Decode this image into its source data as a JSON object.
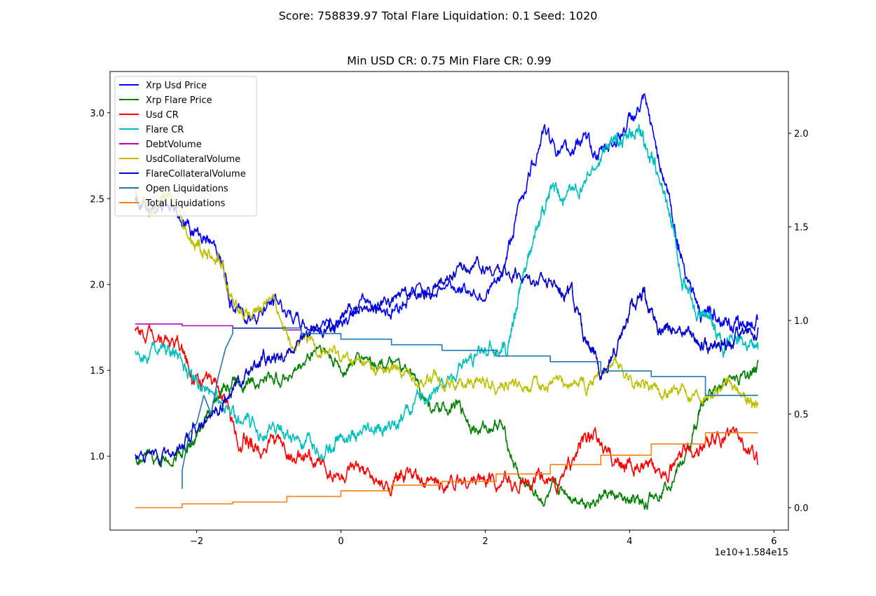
{
  "chart_data": {
    "type": "line",
    "suptitle": "Score: 758839.97 Total Flare Liquidation: 0.1 Seed: 1020",
    "title": "Min USD CR: 0.75 Min Flare CR: 0.99",
    "x_offset_label": "1e10+1.584e15",
    "xlim": [
      -3.2,
      6.2
    ],
    "ylim_left": [
      0.57,
      3.24
    ],
    "ylim_right": [
      -0.12,
      2.33
    ],
    "x_ticks": [
      -2,
      0,
      2,
      4,
      6
    ],
    "y_ticks_left": [
      1.0,
      1.5,
      2.0,
      2.5,
      3.0
    ],
    "y_ticks_right": [
      0.0,
      0.5,
      1.0,
      1.5,
      2.0
    ],
    "x_tick_labels": [
      "−2",
      "0",
      "2",
      "4",
      "6"
    ],
    "y_tick_labels_left": [
      "1.0",
      "1.5",
      "2.0",
      "2.5",
      "3.0"
    ],
    "y_tick_labels_right": [
      "0.0",
      "0.5",
      "1.0",
      "1.5",
      "2.0"
    ],
    "grid": false,
    "legend_position": "top-left",
    "series": [
      {
        "name": "Xrp Usd Price",
        "color": "#0000ff",
        "axis": "left",
        "jitter": 0.035,
        "x": [
          -2.85,
          -2.6,
          -2.3,
          -2.0,
          -1.7,
          -1.5,
          -1.2,
          -0.9,
          -0.5,
          0.0,
          0.4,
          0.7,
          1.0,
          1.5,
          1.9,
          2.2,
          2.5,
          2.8,
          3.1,
          3.3,
          3.6,
          3.9,
          4.2,
          4.5,
          4.7,
          5.0,
          5.2,
          5.5,
          5.78
        ],
        "y": [
          2.48,
          2.45,
          2.42,
          2.3,
          2.2,
          1.85,
          1.83,
          1.9,
          1.75,
          1.8,
          1.9,
          1.85,
          1.95,
          2.0,
          1.95,
          2.0,
          2.5,
          2.9,
          2.75,
          2.85,
          2.75,
          2.9,
          3.05,
          2.6,
          2.2,
          1.8,
          1.85,
          1.75,
          1.8
        ]
      },
      {
        "name": "Xrp Flare Price",
        "color": "#008000",
        "axis": "left",
        "jitter": 0.03,
        "x": [
          -2.85,
          -2.5,
          -2.2,
          -2.0,
          -1.7,
          -1.5,
          -1.2,
          -0.9,
          -0.6,
          -0.3,
          0.0,
          0.3,
          0.6,
          1.0,
          1.3,
          1.6,
          1.9,
          2.2,
          2.5,
          2.8,
          3.1,
          3.4,
          3.7,
          4.0,
          4.2,
          4.5,
          4.8,
          5.0,
          5.3,
          5.6,
          5.78
        ],
        "y": [
          1.0,
          0.97,
          1.02,
          1.1,
          1.35,
          1.45,
          1.45,
          1.45,
          1.5,
          1.65,
          1.5,
          1.58,
          1.55,
          1.45,
          1.25,
          1.3,
          1.15,
          1.2,
          0.85,
          0.75,
          0.8,
          0.75,
          0.78,
          0.72,
          0.72,
          0.85,
          1.0,
          1.3,
          1.45,
          1.45,
          1.55
        ]
      },
      {
        "name": "Usd CR",
        "color": "#ff0000",
        "axis": "left",
        "jitter": 0.035,
        "x": [
          -2.85,
          -2.5,
          -2.2,
          -2.0,
          -1.7,
          -1.4,
          -1.2,
          -0.9,
          -0.6,
          -0.3,
          0.0,
          0.3,
          0.6,
          0.9,
          1.2,
          1.5,
          1.8,
          2.1,
          2.4,
          2.7,
          3.0,
          3.3,
          3.5,
          3.8,
          4.0,
          4.3,
          4.6,
          4.9,
          5.2,
          5.5,
          5.78
        ],
        "y": [
          1.72,
          1.72,
          1.62,
          1.45,
          1.4,
          1.1,
          1.05,
          1.1,
          0.97,
          0.95,
          0.88,
          0.9,
          0.8,
          0.9,
          0.82,
          0.85,
          0.86,
          0.88,
          0.83,
          0.86,
          0.83,
          1.05,
          1.1,
          0.98,
          0.95,
          0.9,
          0.96,
          1.05,
          1.1,
          1.12,
          0.95
        ]
      },
      {
        "name": "Flare CR",
        "color": "#00bfbf",
        "axis": "left",
        "jitter": 0.035,
        "x": [
          -2.85,
          -2.5,
          -2.2,
          -2.0,
          -1.7,
          -1.4,
          -1.1,
          -0.8,
          -0.5,
          -0.2,
          0.0,
          0.3,
          0.6,
          0.9,
          1.2,
          1.5,
          1.8,
          2.1,
          2.3,
          2.5,
          2.7,
          2.9,
          3.1,
          3.4,
          3.7,
          3.9,
          4.1,
          4.3,
          4.5,
          4.7,
          4.9,
          5.1,
          5.3,
          5.5,
          5.78
        ],
        "y": [
          1.6,
          1.65,
          1.55,
          1.45,
          1.35,
          1.2,
          1.15,
          1.15,
          1.05,
          1.05,
          1.12,
          1.1,
          1.15,
          1.25,
          1.35,
          1.45,
          1.55,
          1.65,
          1.6,
          2.0,
          2.3,
          2.55,
          2.5,
          2.6,
          2.8,
          2.85,
          2.9,
          2.75,
          2.5,
          2.1,
          1.85,
          1.8,
          1.65,
          1.68,
          1.62
        ]
      },
      {
        "name": "DebtVolume",
        "color": "#bf00bf",
        "axis": "left",
        "jitter": 0,
        "x": [
          -2.85,
          -2.2,
          -2.2,
          -1.5,
          -1.5,
          -0.8,
          -0.8,
          -0.55
        ],
        "y": [
          1.77,
          1.77,
          1.76,
          1.76,
          1.745,
          1.745,
          1.735,
          1.735
        ]
      },
      {
        "name": "UsdCollateralVolume",
        "color": "#bfbf00",
        "axis": "left",
        "jitter": 0.03,
        "x": [
          -2.85,
          -2.6,
          -2.4,
          -2.1,
          -1.9,
          -1.7,
          -1.5,
          -1.2,
          -1.0,
          -0.7,
          -0.4,
          -0.1,
          0.2,
          0.5,
          0.8,
          1.1,
          1.4,
          1.7,
          2.0,
          2.3,
          2.6,
          2.9,
          3.2,
          3.5,
          3.8,
          4.1,
          4.4,
          4.7,
          5.0,
          5.3,
          5.6,
          5.78
        ],
        "y": [
          2.55,
          2.45,
          2.55,
          2.3,
          2.2,
          2.15,
          1.9,
          1.8,
          1.95,
          1.7,
          1.65,
          1.6,
          1.55,
          1.5,
          1.5,
          1.45,
          1.45,
          1.42,
          1.45,
          1.42,
          1.42,
          1.42,
          1.42,
          1.45,
          1.55,
          1.42,
          1.38,
          1.38,
          1.38,
          1.42,
          1.35,
          1.3
        ]
      },
      {
        "name": "FlareCollateralVolume",
        "color": "#0000cd",
        "axis": "left",
        "jitter": 0.03,
        "x": [
          -2.85,
          -2.5,
          -2.2,
          -2.0,
          -1.7,
          -1.5,
          -1.2,
          -1.0,
          -0.8,
          -0.5,
          -0.2,
          0.0,
          0.3,
          0.6,
          0.9,
          1.2,
          1.5,
          1.8,
          2.1,
          2.4,
          2.7,
          3.0,
          3.2,
          3.4,
          3.6,
          3.8,
          4.0,
          4.2,
          4.4,
          4.6,
          4.9,
          5.1,
          5.3,
          5.5,
          5.78
        ],
        "y": [
          1.0,
          0.98,
          1.05,
          1.15,
          1.28,
          1.4,
          1.5,
          1.58,
          1.62,
          1.7,
          1.73,
          1.8,
          1.85,
          1.88,
          1.92,
          1.95,
          2.05,
          2.1,
          2.08,
          2.05,
          2.05,
          2.0,
          1.95,
          1.65,
          1.5,
          1.6,
          1.85,
          1.95,
          1.75,
          1.75,
          1.7,
          1.6,
          1.65,
          1.7,
          1.75
        ]
      },
      {
        "name": "Open Liquidations",
        "color": "#1f77b4",
        "axis": "right",
        "jitter": 0,
        "x": [
          -2.2,
          -2.2,
          -2.1,
          -2.0,
          -1.9,
          -1.8,
          -1.7,
          -1.6,
          -1.5,
          -1.5,
          -0.55,
          -0.55,
          0.0,
          0.0,
          0.7,
          0.7,
          1.4,
          1.4,
          2.15,
          2.15,
          2.9,
          2.9,
          3.6,
          3.6,
          4.3,
          4.3,
          5.05,
          5.05,
          5.78
        ],
        "y": [
          0.1,
          0.2,
          0.4,
          0.45,
          0.6,
          0.5,
          0.7,
          0.85,
          0.93,
          0.96,
          0.96,
          0.93,
          0.93,
          0.9,
          0.9,
          0.87,
          0.87,
          0.84,
          0.84,
          0.81,
          0.81,
          0.78,
          0.78,
          0.73,
          0.73,
          0.7,
          0.7,
          0.6,
          0.6
        ]
      },
      {
        "name": "Total Liquidations",
        "color": "#ff7f0e",
        "axis": "right",
        "jitter": 0,
        "x": [
          -2.85,
          -2.2,
          -2.2,
          -1.5,
          -1.5,
          -0.75,
          -0.75,
          0.0,
          0.0,
          0.7,
          0.7,
          1.4,
          1.4,
          2.15,
          2.15,
          2.9,
          2.9,
          3.6,
          3.6,
          4.3,
          4.3,
          5.05,
          5.05,
          5.78
        ],
        "y": [
          0.0,
          0.0,
          0.02,
          0.02,
          0.03,
          0.03,
          0.06,
          0.06,
          0.09,
          0.09,
          0.12,
          0.12,
          0.14,
          0.14,
          0.18,
          0.18,
          0.23,
          0.23,
          0.28,
          0.28,
          0.34,
          0.34,
          0.4,
          0.4
        ]
      }
    ]
  }
}
